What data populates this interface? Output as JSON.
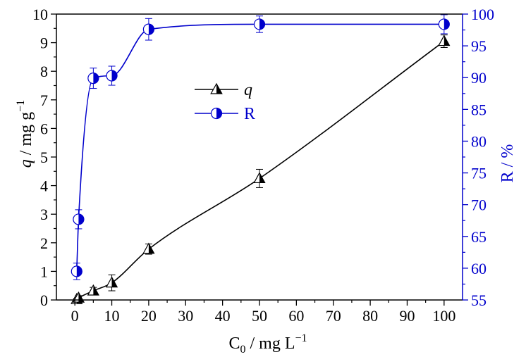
{
  "chart_data": {
    "type": "line",
    "xlabel": {
      "base": "C",
      "sub": "0",
      "unit": " / mg L",
      "sup": "−1"
    },
    "ylabel_left": {
      "italic": "q",
      "unit": " / mg g",
      "sup": "−1"
    },
    "ylabel_right": "R / %",
    "xlim": [
      -5,
      105
    ],
    "ylim_left": [
      0,
      10
    ],
    "ylim_right": [
      55,
      100
    ],
    "xticks": [
      0,
      10,
      20,
      30,
      40,
      50,
      60,
      70,
      80,
      90,
      100
    ],
    "yticks_left": [
      0,
      1,
      2,
      3,
      4,
      5,
      6,
      7,
      8,
      9,
      10
    ],
    "yticks_right": [
      55,
      60,
      65,
      70,
      75,
      80,
      85,
      90,
      95,
      100
    ],
    "legend_position": "upper-center",
    "series": [
      {
        "name": "q",
        "axis": "left",
        "color": "#000000",
        "marker": "half-filled-triangle",
        "x": [
          0.5,
          1,
          5,
          10,
          20,
          50,
          100
        ],
        "y": [
          0.02,
          0.07,
          0.32,
          0.6,
          1.78,
          4.25,
          9.05
        ],
        "err": [
          0.03,
          0.08,
          0.12,
          0.28,
          0.18,
          0.32,
          0.22
        ]
      },
      {
        "name": "R",
        "axis": "right",
        "color": "#0000cc",
        "marker": "half-filled-circle",
        "x": [
          0.5,
          1,
          5,
          10,
          20,
          50,
          100
        ],
        "y": [
          59.5,
          67.7,
          89.9,
          90.3,
          97.6,
          98.4,
          98.4
        ],
        "err": [
          1.3,
          1.5,
          1.6,
          1.5,
          1.7,
          1.3,
          1.5
        ]
      }
    ]
  }
}
